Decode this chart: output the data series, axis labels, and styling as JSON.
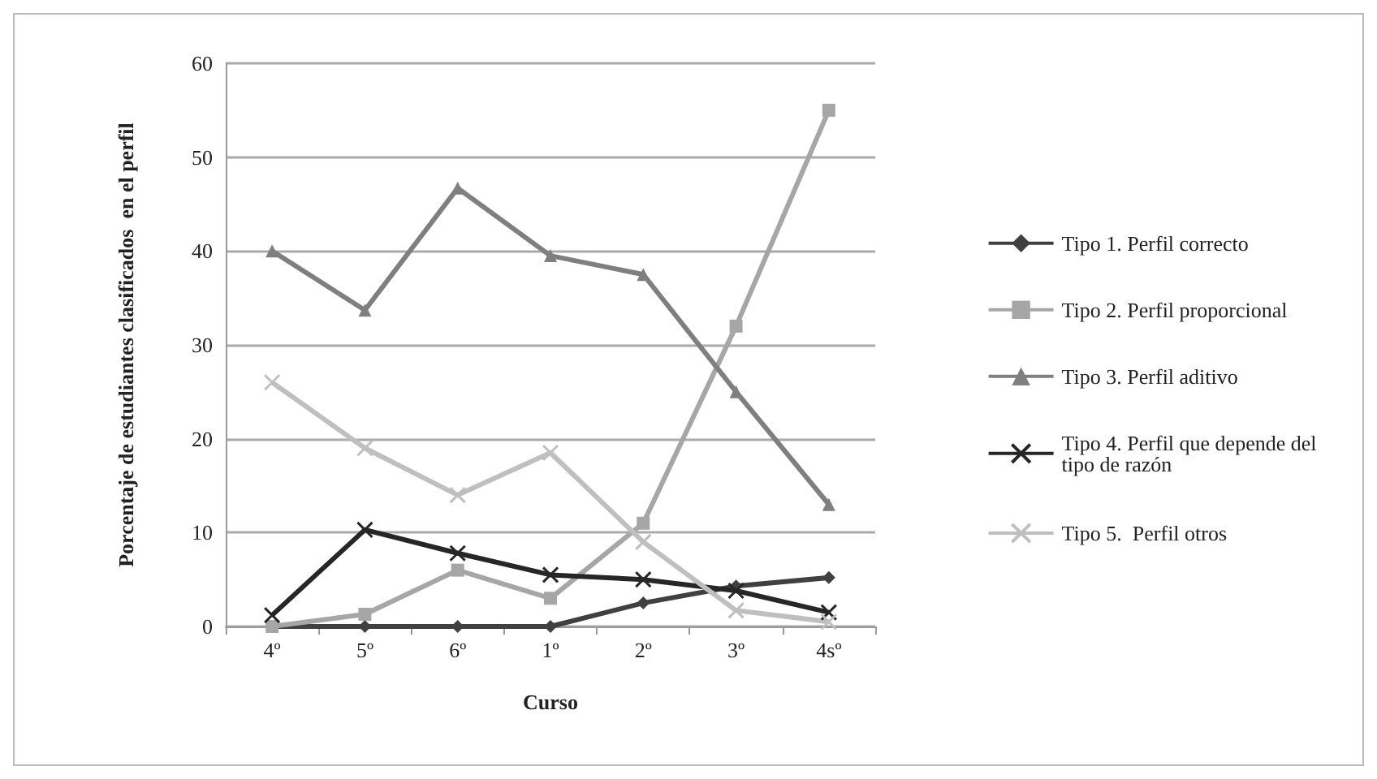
{
  "chart_data": {
    "type": "line",
    "xlabel": "Curso",
    "ylabel": "Porcentaje de estudiantes clasificados  en el perfil",
    "categories": [
      "4º",
      "5º",
      "6º",
      "1º",
      "2º",
      "3º",
      "4sº"
    ],
    "series": [
      {
        "name": "Tipo 1. Perfil correcto",
        "color": "#404040",
        "marker": "diamond",
        "values": [
          0,
          0,
          0,
          0,
          2.5,
          4.3,
          5.2
        ]
      },
      {
        "name": "Tipo 2. Perfil proporcional",
        "color": "#a6a6a6",
        "marker": "square",
        "values": [
          0,
          1.3,
          6,
          3,
          11,
          32,
          55
        ]
      },
      {
        "name": "Tipo 3. Perfil aditivo",
        "color": "#7f7f7f",
        "marker": "triangle",
        "values": [
          40,
          33.7,
          46.7,
          39.5,
          37.5,
          25,
          13
        ]
      },
      {
        "name": "Tipo 4. Perfil que depende del tipo de razón",
        "color": "#262626",
        "marker": "cross",
        "values": [
          1.2,
          10.3,
          7.8,
          5.5,
          5,
          3.8,
          1.5
        ]
      },
      {
        "name": "Tipo 5.  Perfil otros",
        "color": "#bfbfbf",
        "marker": "cross",
        "values": [
          26,
          19,
          14,
          18.5,
          9,
          1.7,
          0.5
        ]
      }
    ],
    "ylim": [
      0,
      60
    ],
    "yticks": [
      0,
      10,
      20,
      30,
      40,
      50,
      60
    ],
    "grid": "y",
    "legend": "right"
  }
}
